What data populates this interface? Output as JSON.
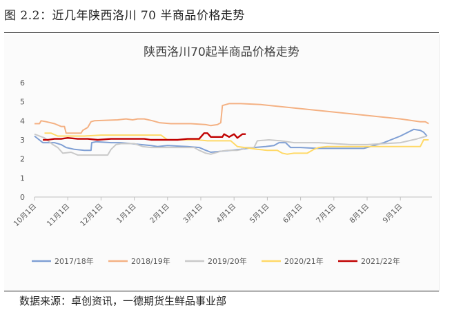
{
  "figure": {
    "caption": "图 2.2：近几年陕西洛川 70 半商品价格走势",
    "source": "数据来源：卓创资讯，一德期货生鲜品事业部"
  },
  "chart_data": {
    "type": "line",
    "title": "陕西洛川70起半商品价格走势",
    "xlabel": "",
    "ylabel": "",
    "ylim": [
      0,
      6
    ],
    "yticks": [
      0,
      1,
      2,
      3,
      4,
      5,
      6
    ],
    "x_categories": [
      "10月1日",
      "11月1日",
      "12月1日",
      "1月1日",
      "2月1日",
      "3月1日",
      "4月1日",
      "5月1日",
      "6月1日",
      "7月1日",
      "8月1日",
      "9月1日"
    ],
    "x_domain": [
      0,
      11.95
    ],
    "grid": false,
    "legend_position": "bottom",
    "series": [
      {
        "name": "2017/18年",
        "color": "#7f9fd4",
        "points": [
          [
            0,
            3.2
          ],
          [
            0.25,
            2.85
          ],
          [
            0.6,
            2.85
          ],
          [
            0.8,
            2.75
          ],
          [
            0.95,
            2.6
          ],
          [
            1.2,
            2.5
          ],
          [
            1.5,
            2.45
          ],
          [
            1.7,
            2.45
          ],
          [
            1.72,
            2.85
          ],
          [
            1.85,
            2.9
          ],
          [
            2.3,
            2.85
          ],
          [
            2.6,
            2.85
          ],
          [
            2.9,
            2.8
          ],
          [
            3.2,
            2.75
          ],
          [
            3.5,
            2.7
          ],
          [
            3.7,
            2.65
          ],
          [
            4.0,
            2.7
          ],
          [
            4.6,
            2.65
          ],
          [
            4.95,
            2.6
          ],
          [
            5.15,
            2.45
          ],
          [
            5.3,
            2.35
          ],
          [
            5.6,
            2.4
          ],
          [
            5.9,
            2.45
          ],
          [
            6.2,
            2.5
          ],
          [
            6.4,
            2.55
          ],
          [
            6.6,
            2.6
          ],
          [
            6.95,
            2.65
          ],
          [
            7.2,
            2.7
          ],
          [
            7.35,
            2.85
          ],
          [
            7.55,
            2.85
          ],
          [
            7.7,
            2.6
          ],
          [
            8.0,
            2.6
          ],
          [
            8.5,
            2.55
          ],
          [
            9.0,
            2.55
          ],
          [
            9.5,
            2.55
          ],
          [
            9.9,
            2.55
          ],
          [
            10.0,
            2.6
          ],
          [
            10.5,
            2.85
          ],
          [
            11.0,
            3.2
          ],
          [
            11.4,
            3.55
          ],
          [
            11.6,
            3.5
          ],
          [
            11.7,
            3.4
          ],
          [
            11.8,
            3.2
          ]
        ]
      },
      {
        "name": "2018/19年",
        "color": "#f4b183",
        "points": [
          [
            0,
            3.85
          ],
          [
            0.15,
            3.85
          ],
          [
            0.2,
            4.0
          ],
          [
            0.35,
            3.95
          ],
          [
            0.6,
            3.85
          ],
          [
            0.8,
            3.7
          ],
          [
            0.9,
            3.7
          ],
          [
            0.95,
            3.35
          ],
          [
            1.4,
            3.35
          ],
          [
            1.45,
            3.5
          ],
          [
            1.6,
            3.65
          ],
          [
            1.7,
            3.95
          ],
          [
            1.8,
            4.0
          ],
          [
            2.5,
            4.05
          ],
          [
            2.75,
            4.1
          ],
          [
            2.95,
            4.05
          ],
          [
            3.1,
            4.1
          ],
          [
            3.3,
            4.1
          ],
          [
            3.55,
            4.0
          ],
          [
            3.75,
            3.9
          ],
          [
            4.1,
            3.85
          ],
          [
            4.7,
            3.85
          ],
          [
            5.15,
            3.8
          ],
          [
            5.3,
            3.75
          ],
          [
            5.5,
            3.8
          ],
          [
            5.6,
            3.9
          ],
          [
            5.65,
            4.8
          ],
          [
            5.85,
            4.9
          ],
          [
            6.2,
            4.9
          ],
          [
            6.8,
            4.85
          ],
          [
            11.0,
            4.1
          ],
          [
            11.6,
            3.95
          ],
          [
            11.75,
            3.95
          ],
          [
            11.85,
            3.85
          ]
        ]
      },
      {
        "name": "2019/20年",
        "color": "#c9c9c9",
        "points": [
          [
            0,
            3.3
          ],
          [
            0.3,
            3.1
          ],
          [
            0.55,
            2.75
          ],
          [
            0.7,
            2.6
          ],
          [
            0.85,
            2.3
          ],
          [
            1.1,
            2.35
          ],
          [
            1.3,
            2.2
          ],
          [
            1.6,
            2.2
          ],
          [
            1.9,
            2.2
          ],
          [
            2.2,
            2.2
          ],
          [
            2.3,
            2.5
          ],
          [
            2.45,
            2.75
          ],
          [
            2.6,
            2.8
          ],
          [
            3.0,
            2.8
          ],
          [
            3.25,
            2.65
          ],
          [
            3.5,
            2.6
          ],
          [
            3.75,
            2.6
          ],
          [
            4.0,
            2.6
          ],
          [
            4.5,
            2.6
          ],
          [
            4.8,
            2.6
          ],
          [
            4.95,
            2.45
          ],
          [
            5.15,
            2.3
          ],
          [
            5.3,
            2.25
          ],
          [
            5.6,
            2.4
          ],
          [
            5.8,
            2.45
          ],
          [
            6.1,
            2.45
          ],
          [
            6.25,
            2.5
          ],
          [
            6.35,
            2.6
          ],
          [
            6.6,
            2.6
          ],
          [
            6.7,
            2.95
          ],
          [
            7.05,
            3.0
          ],
          [
            7.4,
            2.95
          ],
          [
            7.6,
            2.9
          ],
          [
            7.8,
            2.85
          ],
          [
            8.3,
            2.85
          ],
          [
            8.55,
            2.85
          ],
          [
            9.0,
            2.8
          ],
          [
            9.5,
            2.75
          ],
          [
            10.0,
            2.75
          ],
          [
            10.5,
            2.8
          ],
          [
            11.0,
            2.85
          ],
          [
            11.5,
            3.05
          ],
          [
            11.8,
            3.2
          ]
        ]
      },
      {
        "name": "2020/21年",
        "color": "#ffd966",
        "points": [
          [
            0.3,
            3.35
          ],
          [
            0.5,
            3.35
          ],
          [
            0.7,
            3.2
          ],
          [
            1.0,
            3.2
          ],
          [
            1.5,
            3.2
          ],
          [
            2.0,
            3.25
          ],
          [
            2.5,
            3.25
          ],
          [
            3.0,
            3.25
          ],
          [
            3.5,
            3.25
          ],
          [
            3.8,
            3.25
          ],
          [
            4.0,
            3.0
          ],
          [
            4.5,
            3.0
          ],
          [
            4.9,
            3.0
          ],
          [
            5.2,
            2.95
          ],
          [
            5.6,
            2.95
          ],
          [
            5.9,
            2.95
          ],
          [
            6.1,
            2.65
          ],
          [
            6.5,
            2.55
          ],
          [
            6.7,
            2.5
          ],
          [
            7.0,
            2.45
          ],
          [
            7.3,
            2.45
          ],
          [
            7.45,
            2.3
          ],
          [
            7.6,
            2.25
          ],
          [
            7.8,
            2.3
          ],
          [
            8.2,
            2.3
          ],
          [
            8.4,
            2.5
          ],
          [
            8.55,
            2.6
          ],
          [
            8.8,
            2.65
          ],
          [
            9.2,
            2.65
          ],
          [
            9.5,
            2.65
          ],
          [
            10.0,
            2.65
          ],
          [
            10.5,
            2.65
          ],
          [
            11.0,
            2.65
          ],
          [
            11.6,
            2.65
          ],
          [
            11.7,
            3.0
          ],
          [
            11.85,
            3.0
          ]
        ]
      },
      {
        "name": "2021/22年",
        "color": "#c00000",
        "points": [
          [
            0.25,
            3.0
          ],
          [
            0.4,
            3.0
          ],
          [
            0.6,
            3.05
          ],
          [
            0.8,
            3.05
          ],
          [
            1.0,
            3.1
          ],
          [
            1.3,
            3.05
          ],
          [
            1.6,
            3.05
          ],
          [
            1.9,
            3.0
          ],
          [
            2.3,
            3.05
          ],
          [
            2.7,
            3.05
          ],
          [
            3.1,
            3.05
          ],
          [
            3.3,
            3.05
          ],
          [
            3.5,
            3.0
          ],
          [
            3.9,
            3.0
          ],
          [
            4.3,
            3.0
          ],
          [
            4.6,
            3.05
          ],
          [
            4.95,
            3.05
          ],
          [
            5.0,
            3.15
          ],
          [
            5.1,
            3.35
          ],
          [
            5.2,
            3.35
          ],
          [
            5.3,
            3.15
          ],
          [
            5.5,
            3.15
          ],
          [
            5.65,
            3.15
          ],
          [
            5.7,
            3.3
          ],
          [
            5.85,
            3.15
          ],
          [
            6.0,
            3.3
          ],
          [
            6.1,
            3.1
          ],
          [
            6.25,
            3.3
          ],
          [
            6.35,
            3.3
          ]
        ]
      }
    ]
  }
}
